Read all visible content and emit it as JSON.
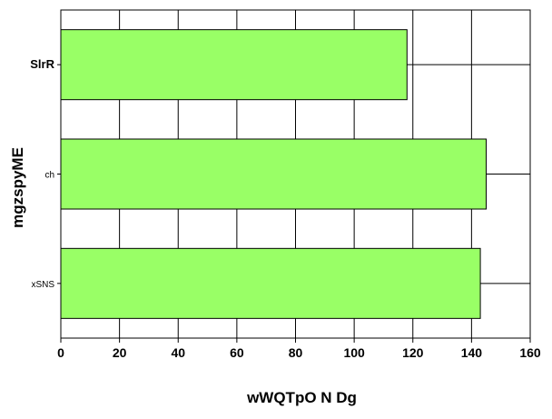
{
  "chart_data": {
    "type": "bar",
    "orientation": "horizontal",
    "categories": [
      "SlrR",
      "ch",
      "xSNS"
    ],
    "values": [
      118,
      145,
      143
    ],
    "xlabel": "wWQTpO  N Dg",
    "ylabel": "mgzspyME",
    "xlim": [
      0,
      160
    ],
    "xticks": [
      0,
      20,
      40,
      60,
      80,
      100,
      120,
      140,
      160
    ],
    "grid": true,
    "bar_color": "#99ff66",
    "legend": "none"
  }
}
